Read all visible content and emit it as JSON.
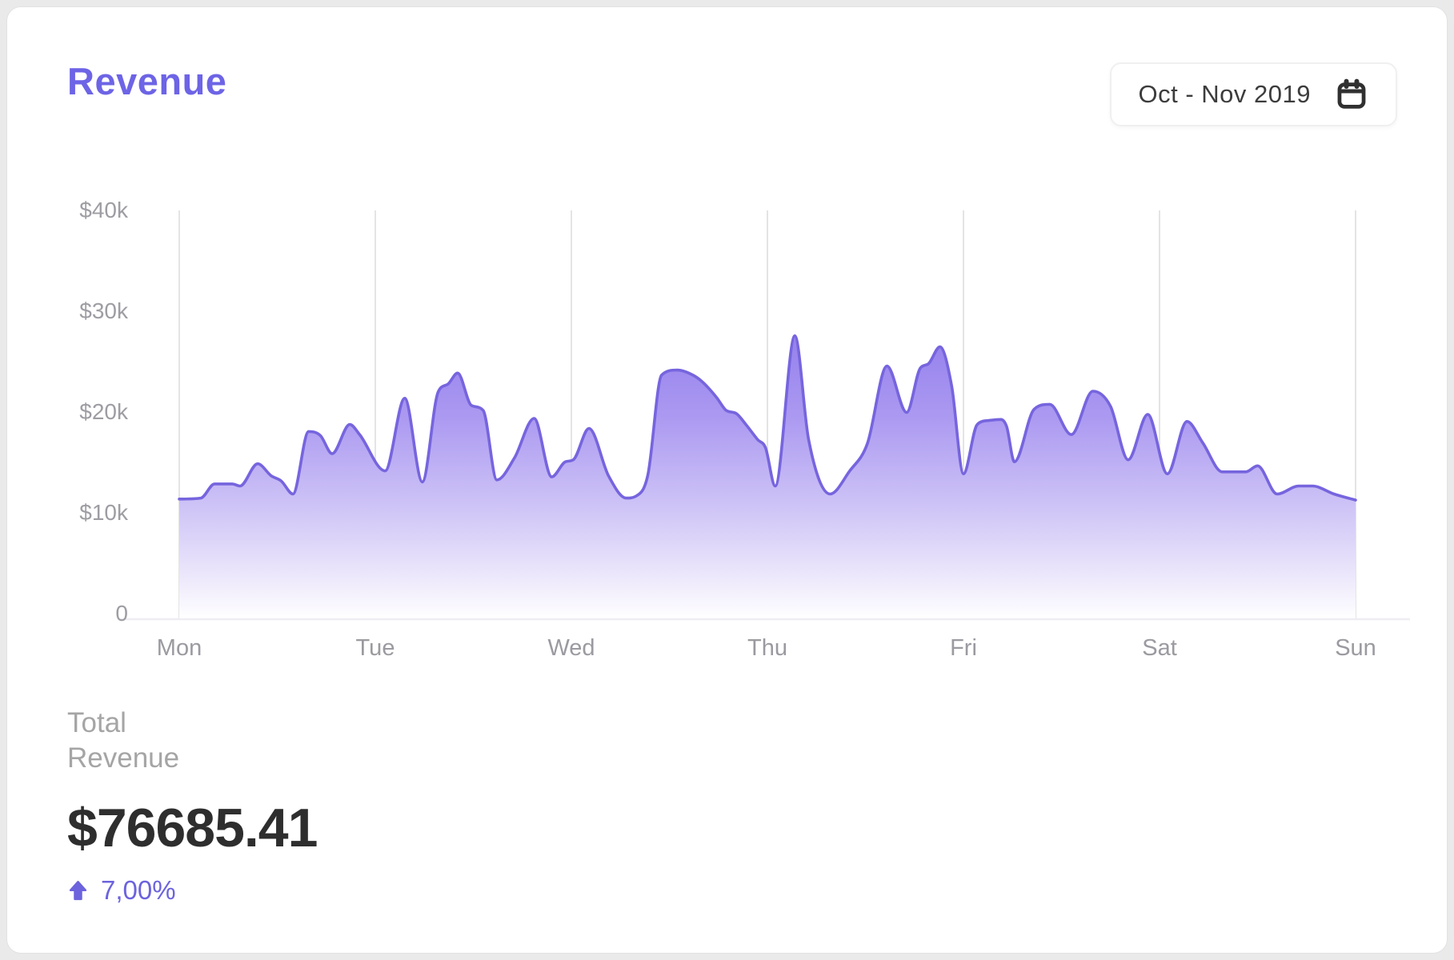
{
  "header": {
    "title": "Revenue",
    "title_color": "#6d64e6",
    "date_range_button": {
      "label": "Oct - Nov 2019",
      "icon": "calendar-icon"
    }
  },
  "chart_data": {
    "type": "area",
    "title": "Revenue",
    "x_categories": [
      "Mon",
      "Tue",
      "Wed",
      "Thu",
      "Fri",
      "Sat",
      "Sun"
    ],
    "y_ticks": [
      {
        "label": "$40k",
        "value": 40000
      },
      {
        "label": "$30k",
        "value": 30000
      },
      {
        "label": "$20k",
        "value": 20000
      },
      {
        "label": "$10k",
        "value": 10000
      },
      {
        "label": "0",
        "value": 0
      }
    ],
    "ylim": [
      0,
      40000
    ],
    "grid": "vertical-day-lines",
    "legend": "none",
    "series": [
      {
        "name": "Revenue",
        "unit": "USD (thousands)",
        "points_day_value_k": [
          [
            0.0,
            11.6
          ],
          [
            0.11,
            11.7
          ],
          [
            0.18,
            13.1
          ],
          [
            0.27,
            13.1
          ],
          [
            0.31,
            12.9
          ],
          [
            0.4,
            15.1
          ],
          [
            0.47,
            13.9
          ],
          [
            0.52,
            13.4
          ],
          [
            0.58,
            12.1
          ],
          [
            0.66,
            18.3
          ],
          [
            0.72,
            17.9
          ],
          [
            0.78,
            16.1
          ],
          [
            0.87,
            19.0
          ],
          [
            0.92,
            18.0
          ],
          [
            1.05,
            14.4
          ],
          [
            1.15,
            21.6
          ],
          [
            1.24,
            13.3
          ],
          [
            1.32,
            22.2
          ],
          [
            1.37,
            23.0
          ],
          [
            1.42,
            24.1
          ],
          [
            1.49,
            20.9
          ],
          [
            1.55,
            20.4
          ],
          [
            1.62,
            13.5
          ],
          [
            1.71,
            15.7
          ],
          [
            1.81,
            19.6
          ],
          [
            1.9,
            13.8
          ],
          [
            1.97,
            15.3
          ],
          [
            2.01,
            15.5
          ],
          [
            2.09,
            18.6
          ],
          [
            2.19,
            13.9
          ],
          [
            2.28,
            11.7
          ],
          [
            2.33,
            11.9
          ],
          [
            2.39,
            14.0
          ],
          [
            2.46,
            23.9
          ],
          [
            2.54,
            24.4
          ],
          [
            2.62,
            23.9
          ],
          [
            2.67,
            23.2
          ],
          [
            2.74,
            21.7
          ],
          [
            2.79,
            20.4
          ],
          [
            2.84,
            20.1
          ],
          [
            2.89,
            19.0
          ],
          [
            2.95,
            17.5
          ],
          [
            2.99,
            16.7
          ],
          [
            3.04,
            12.9
          ],
          [
            3.14,
            27.8
          ],
          [
            3.21,
            17.5
          ],
          [
            3.32,
            12.1
          ],
          [
            3.42,
            14.4
          ],
          [
            3.51,
            17.1
          ],
          [
            3.61,
            24.8
          ],
          [
            3.71,
            20.2
          ],
          [
            3.78,
            24.6
          ],
          [
            3.82,
            25.0
          ],
          [
            3.88,
            26.7
          ],
          [
            3.94,
            22.8
          ],
          [
            4.0,
            14.1
          ],
          [
            4.07,
            19.0
          ],
          [
            4.13,
            19.4
          ],
          [
            4.19,
            19.5
          ],
          [
            4.22,
            18.8
          ],
          [
            4.26,
            15.3
          ],
          [
            4.36,
            20.5
          ],
          [
            4.44,
            21.0
          ],
          [
            4.55,
            18.0
          ],
          [
            4.66,
            22.3
          ],
          [
            4.75,
            20.8
          ],
          [
            4.84,
            15.5
          ],
          [
            4.94,
            20.0
          ],
          [
            5.04,
            14.1
          ],
          [
            5.14,
            19.3
          ],
          [
            5.22,
            17.2
          ],
          [
            5.32,
            14.3
          ],
          [
            5.44,
            14.3
          ],
          [
            5.5,
            14.9
          ],
          [
            5.6,
            12.1
          ],
          [
            5.71,
            12.9
          ],
          [
            5.78,
            12.9
          ],
          [
            5.89,
            12.1
          ],
          [
            6.0,
            11.5
          ]
        ]
      }
    ],
    "colors": {
      "line": "#7665de",
      "fill_top": "#937fec",
      "fill_bottom": "#ffffff",
      "grid_line": "#e4e4e4",
      "baseline": "#efedf2",
      "axis_label": "#9d9da3"
    }
  },
  "summary": {
    "label_line1": "Total",
    "label_line2": "Revenue",
    "value": "$76685.41",
    "delta": "7,00%",
    "delta_direction": "up",
    "delta_color": "#6c63dd"
  }
}
